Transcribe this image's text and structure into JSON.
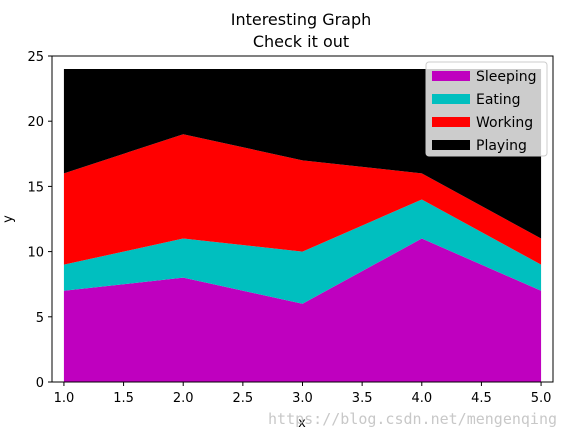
{
  "chart_data": {
    "type": "area",
    "stacked": true,
    "title": "Interesting Graph",
    "subtitle": "Check it out",
    "xlabel": "x",
    "ylabel": "y",
    "x": [
      1,
      2,
      3,
      4,
      5
    ],
    "xlim": [
      0.9,
      5.1
    ],
    "ylim": [
      0,
      25
    ],
    "xticks": [
      "1.0",
      "1.5",
      "2.0",
      "2.5",
      "3.0",
      "3.5",
      "4.0",
      "4.5",
      "5.0"
    ],
    "yticks": [
      "0",
      "5",
      "10",
      "15",
      "20",
      "25"
    ],
    "grid": false,
    "legend_position": "top-right",
    "series": [
      {
        "name": "Sleeping",
        "color": "#bf00bf",
        "values": [
          7,
          8,
          6,
          11,
          7
        ]
      },
      {
        "name": "Eating",
        "color": "#00bfbf",
        "values": [
          2,
          3,
          4,
          3,
          2
        ]
      },
      {
        "name": "Working",
        "color": "#ff0000",
        "values": [
          7,
          8,
          7,
          2,
          2
        ]
      },
      {
        "name": "Playing",
        "color": "#000000",
        "values": [
          8,
          5,
          7,
          8,
          13
        ]
      }
    ]
  },
  "watermark": "https://blog.csdn.net/mengenqing"
}
